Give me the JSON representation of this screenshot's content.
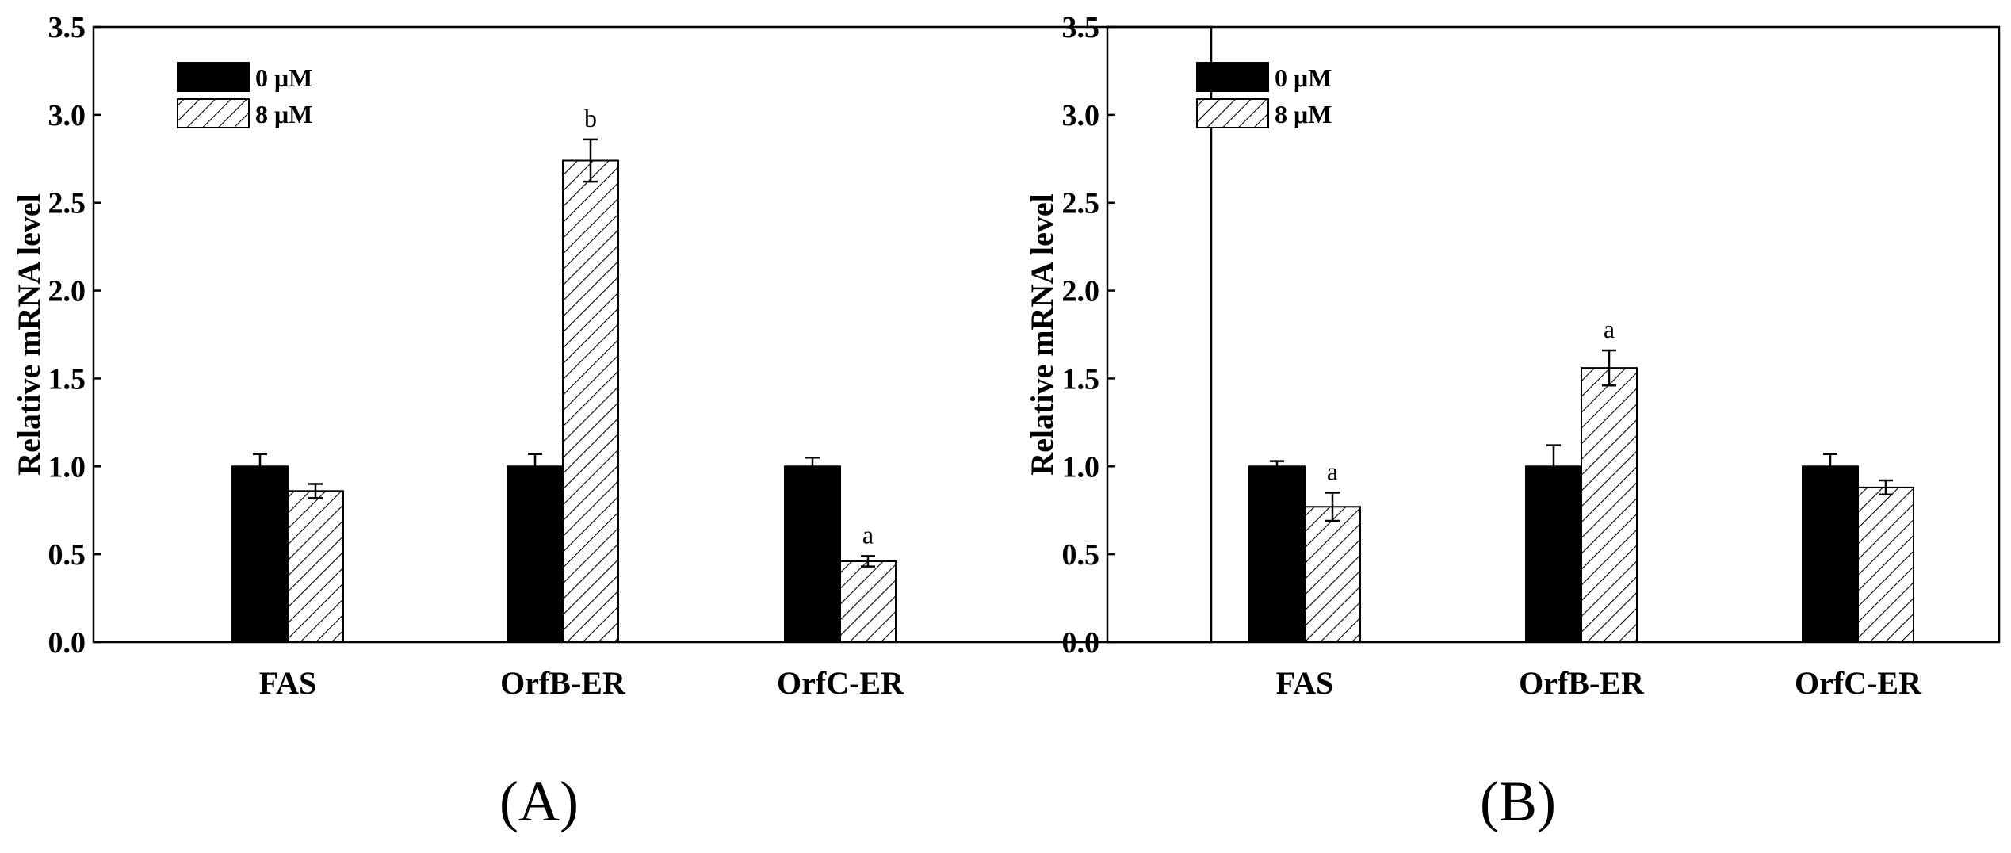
{
  "chart_data": [
    {
      "type": "bar",
      "panel_label": "(A)",
      "ylabel": "Relative mRNA level",
      "xlabel": "",
      "ylim": [
        0,
        3.5
      ],
      "yticks": [
        "0.0",
        "0.5",
        "1.0",
        "1.5",
        "2.0",
        "2.5",
        "3.0",
        "3.5"
      ],
      "categories": [
        "FAS",
        "OrfB-ER",
        "OrfC-ER"
      ],
      "legend_position": "top-left",
      "series": [
        {
          "name": "0 μM",
          "fill": "solid",
          "color": "#000000",
          "values": [
            1.0,
            1.0,
            1.0
          ],
          "errors": [
            0.07,
            0.07,
            0.05
          ],
          "annotations": [
            "",
            "",
            ""
          ]
        },
        {
          "name": "8 μM",
          "fill": "hatched",
          "color": "#ffffff",
          "values": [
            0.86,
            2.74,
            0.46
          ],
          "errors": [
            0.04,
            0.12,
            0.03
          ],
          "annotations": [
            "",
            "b",
            "a"
          ]
        }
      ]
    },
    {
      "type": "bar",
      "panel_label": "(B)",
      "ylabel": "Relative mRNA level",
      "xlabel": "",
      "ylim": [
        0,
        3.5
      ],
      "yticks": [
        "0.0",
        "0.5",
        "1.0",
        "1.5",
        "2.0",
        "2.5",
        "3.0",
        "3.5"
      ],
      "categories": [
        "FAS",
        "OrfB-ER",
        "OrfC-ER"
      ],
      "legend_position": "top-left",
      "series": [
        {
          "name": "0 μM",
          "fill": "solid",
          "color": "#000000",
          "values": [
            1.0,
            1.0,
            1.0
          ],
          "errors": [
            0.03,
            0.12,
            0.07
          ],
          "annotations": [
            "",
            "",
            ""
          ]
        },
        {
          "name": "8 μM",
          "fill": "hatched",
          "color": "#ffffff",
          "values": [
            0.77,
            1.56,
            0.88
          ],
          "errors": [
            0.08,
            0.1,
            0.04
          ],
          "annotations": [
            "a",
            "a",
            ""
          ]
        }
      ]
    }
  ]
}
